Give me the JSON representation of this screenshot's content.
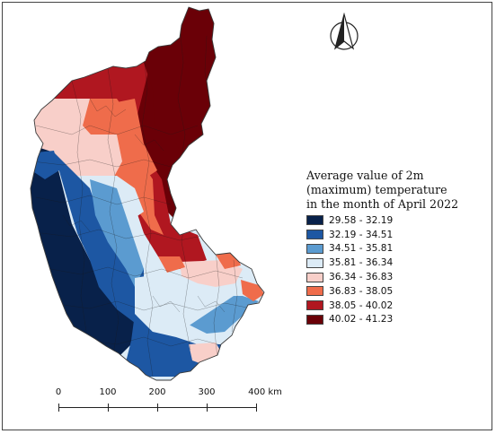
{
  "legend": {
    "title_lines": [
      "Average value of 2m",
      "(maximum) temperature",
      "in the month of April 2022"
    ],
    "items": [
      {
        "label": "29.58 - 32.19",
        "color": "#08214a"
      },
      {
        "label": "32.19 - 34.51",
        "color": "#1d57a3"
      },
      {
        "label": "34.51 - 35.81",
        "color": "#5b9bd0"
      },
      {
        "label": "35.81 - 36.34",
        "color": "#dcebf6"
      },
      {
        "label": "36.34 - 36.83",
        "color": "#f8cfc9"
      },
      {
        "label": "36.83 - 38.05",
        "color": "#ef6c4b"
      },
      {
        "label": "38.05 - 40.02",
        "color": "#b01720"
      },
      {
        "label": "40.02 - 41.23",
        "color": "#6a0007"
      }
    ]
  },
  "scale_bar": {
    "labels": [
      "0",
      "100",
      "200",
      "300",
      "400 km"
    ]
  },
  "north_arrow": {
    "icon": "north-arrow-icon"
  },
  "colors": {
    "border": "#3a3a3a",
    "background": "#ffffff"
  }
}
